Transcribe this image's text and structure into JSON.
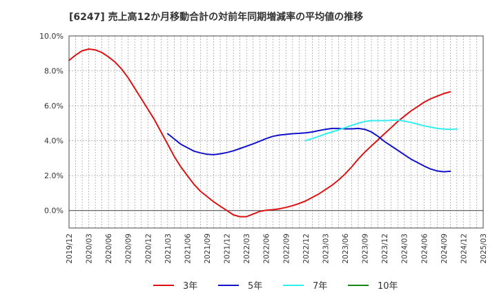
{
  "chart_data": {
    "type": "line",
    "title": "[6247]  売上高12か月移動合計の対前年同期増減率の平均値の推移",
    "xlabel": "",
    "ylabel": "",
    "ylim": [
      -1.0,
      10.0
    ],
    "y_ticks": [
      "10.0%",
      "8.0%",
      "6.0%",
      "4.0%",
      "2.0%",
      "0.0%"
    ],
    "y_tick_values": [
      10,
      8,
      6,
      4,
      2,
      0
    ],
    "x_ticks": [
      "2019/12",
      "2020/03",
      "2020/06",
      "2020/09",
      "2020/12",
      "2021/03",
      "2021/06",
      "2021/09",
      "2021/12",
      "2022/03",
      "2022/06",
      "2022/09",
      "2022/12",
      "2023/03",
      "2023/06",
      "2023/09",
      "2023/12",
      "2024/03",
      "2024/06",
      "2024/09",
      "2024/12",
      "2025/03"
    ],
    "grid": true,
    "legend_position": "bottom",
    "series": [
      {
        "name": "3年",
        "color": "#dd1111",
        "start": "2019/12",
        "values": [
          8.6,
          8.9,
          9.15,
          9.25,
          9.2,
          9.05,
          8.8,
          8.5,
          8.1,
          7.6,
          7.0,
          6.4,
          5.8,
          5.2,
          4.5,
          3.8,
          3.1,
          2.5,
          2.0,
          1.5,
          1.1,
          0.8,
          0.5,
          0.25,
          0.0,
          -0.25,
          -0.35,
          -0.35,
          -0.2,
          -0.05,
          0.02,
          0.05,
          0.1,
          0.18,
          0.28,
          0.4,
          0.55,
          0.75,
          0.95,
          1.2,
          1.45,
          1.75,
          2.1,
          2.5,
          2.95,
          3.35,
          3.7,
          4.05,
          4.4,
          4.75,
          5.1,
          5.4,
          5.7,
          5.95,
          6.2,
          6.4,
          6.55,
          6.7,
          6.8
        ]
      },
      {
        "name": "5年",
        "color": "#1111cc",
        "start": "2021/03",
        "values": [
          4.4,
          4.1,
          3.8,
          3.6,
          3.4,
          3.3,
          3.22,
          3.2,
          3.25,
          3.32,
          3.42,
          3.55,
          3.68,
          3.82,
          3.97,
          4.12,
          4.25,
          4.32,
          4.36,
          4.4,
          4.42,
          4.45,
          4.5,
          4.58,
          4.65,
          4.7,
          4.7,
          4.68,
          4.68,
          4.7,
          4.65,
          4.5,
          4.25,
          3.95,
          3.7,
          3.45,
          3.2,
          2.95,
          2.75,
          2.55,
          2.38,
          2.27,
          2.22,
          2.25
        ]
      },
      {
        "name": "7年",
        "color": "#33eeee",
        "start": "2022/12",
        "values": [
          4.0,
          4.12,
          4.25,
          4.38,
          4.5,
          4.62,
          4.75,
          4.88,
          5.0,
          5.1,
          5.15,
          5.15,
          5.15,
          5.17,
          5.18,
          5.12,
          5.05,
          4.95,
          4.85,
          4.78,
          4.7,
          4.67,
          4.65,
          4.67
        ]
      },
      {
        "name": "10年",
        "color": "#118811",
        "start": "",
        "values": []
      }
    ]
  }
}
